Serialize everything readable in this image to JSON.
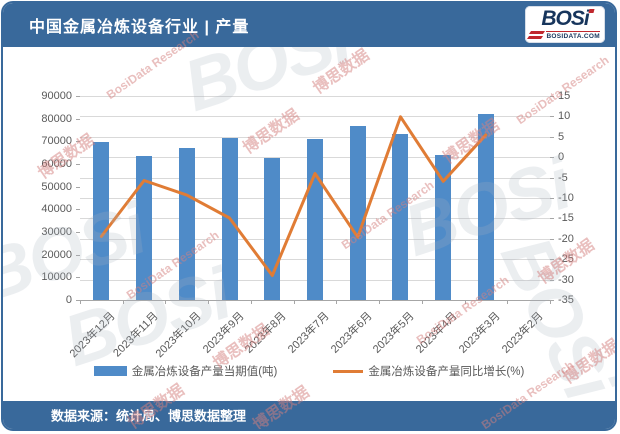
{
  "header": {
    "title": "中国金属冶炼设备行业 | 产量",
    "logo": {
      "text": "BOSi",
      "site": "BOSIDATA.COM",
      "accent_color": "#c0272d",
      "text_color": "#17355c"
    }
  },
  "footer": {
    "source": "数据来源：统计局、博思数据整理"
  },
  "legend": {
    "items": [
      {
        "label": "金属冶炼设备产量当期值(吨)",
        "marker": "bar-swatch",
        "color": "#4f8bc8"
      },
      {
        "label": "金属冶炼设备产量同比增长(%)",
        "marker": "line-swatch",
        "color": "#e07c35"
      }
    ]
  },
  "colors": {
    "band_blue": "#39699b",
    "bar_blue": "#4f8bc8",
    "line_orange": "#e07c35",
    "gridline": "#d9d9d9",
    "axis_text": "#595959"
  },
  "watermarks": {
    "cn": "博思数据",
    "en": "BosiData Research",
    "logo": "BOSi"
  },
  "chart_data": {
    "type": "bar",
    "subtype": "combo-bar-line-dual-axis",
    "title": "中国金属冶炼设备行业 | 产量",
    "categories": [
      "2023年12月",
      "2023年11月",
      "2023年10月",
      "2023年9月",
      "2023年8月",
      "2023年7月",
      "2023年6月",
      "2023年5月",
      "2023年4月",
      "2023年3月",
      "2023年2月"
    ],
    "series": [
      {
        "name": "金属冶炼设备产量当期值(吨)",
        "type": "bar",
        "axis": "left",
        "color": "#4f8bc8",
        "values": [
          69700,
          63700,
          67200,
          71400,
          62600,
          71200,
          76800,
          73400,
          63800,
          81900,
          null
        ]
      },
      {
        "name": "金属冶炼设备产量同比增长(%)",
        "type": "line",
        "axis": "right",
        "color": "#e07c35",
        "values": [
          -19.4,
          -5.7,
          -9.3,
          -14.9,
          -29.0,
          -4.0,
          -19.6,
          9.9,
          -5.9,
          5.5,
          null
        ]
      }
    ],
    "left_axis": {
      "min": 0,
      "max": 90000,
      "step": 10000,
      "ticks": [
        "0",
        "10000",
        "20000",
        "30000",
        "40000",
        "50000",
        "60000",
        "70000",
        "80000",
        "90000"
      ]
    },
    "right_axis": {
      "min": -35,
      "max": 15,
      "step": 5,
      "ticks": [
        "-35",
        "-30",
        "-25",
        "-20",
        "-15",
        "-10",
        "-5",
        "0",
        "5",
        "10",
        "15"
      ]
    },
    "grid": true,
    "legend_position": "bottom",
    "xlabel": "",
    "ylabel": ""
  }
}
